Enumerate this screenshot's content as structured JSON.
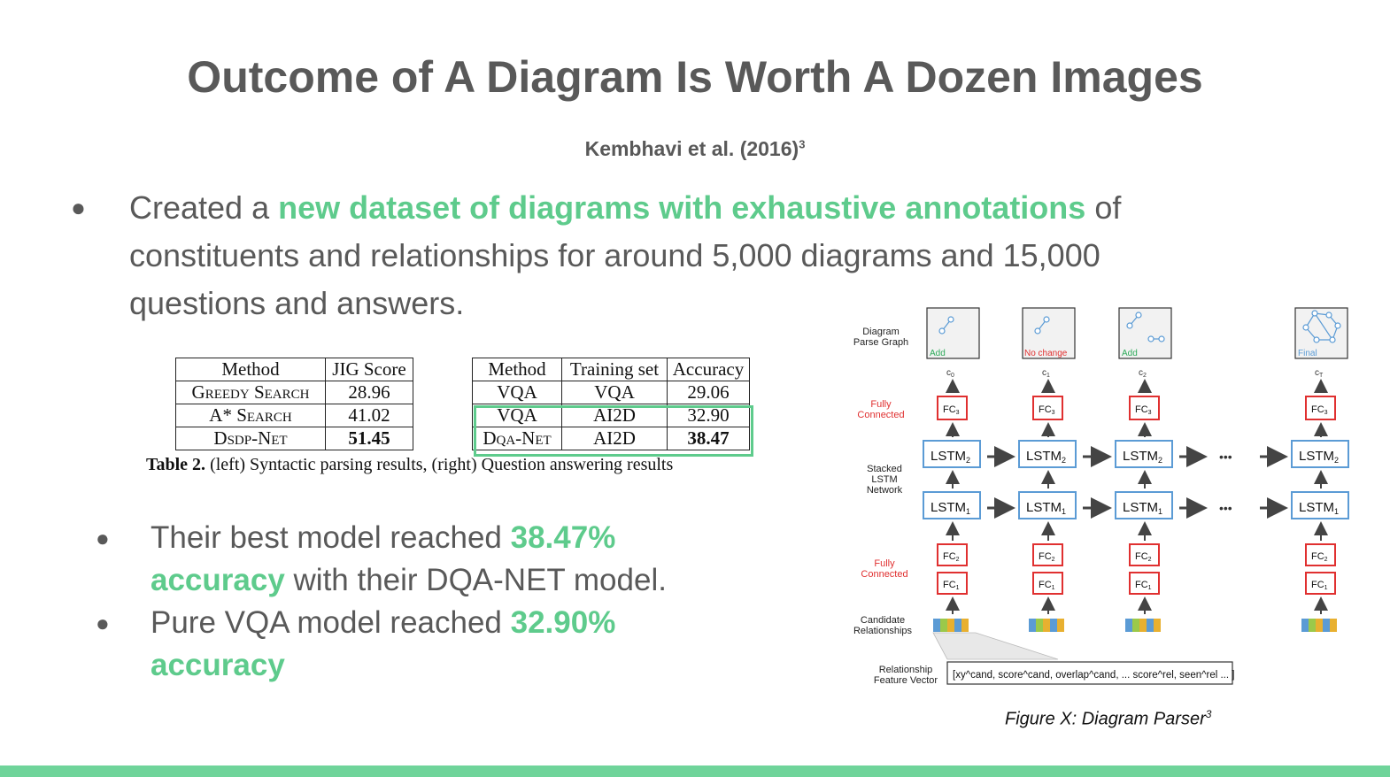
{
  "title": "Outcome of A Diagram Is Worth A Dozen Images",
  "subtitle": {
    "text": "Kembhavi et al. (2016)",
    "sup": "3"
  },
  "main_bullet": {
    "pre": "Created a ",
    "highlight": "new dataset of diagrams with exhaustive annotations",
    "post": " of constituents and relationships for around 5,000 diagrams and 15,000 questions and answers."
  },
  "table_left": {
    "headers": [
      "Method",
      "JIG Score"
    ],
    "rows": [
      [
        "Greedy Search",
        "28.96"
      ],
      [
        "A* Search",
        "41.02"
      ],
      [
        "Dsdp-Net",
        "51.45"
      ]
    ]
  },
  "table_right": {
    "headers": [
      "Method",
      "Training set",
      "Accuracy"
    ],
    "rows": [
      [
        "VQA",
        "VQA",
        "29.06"
      ],
      [
        "VQA",
        "AI2D",
        "32.90"
      ],
      [
        "Dqa-Net",
        "AI2D",
        "38.47"
      ]
    ]
  },
  "table_caption": {
    "label": "Table 2.",
    "text": " (left) Syntactic parsing results, (right) Question answering results"
  },
  "sub_bullets": [
    {
      "pre": "Their best model reached ",
      "highlight": "38.47% accuracy",
      "post": " with their DQA-NET model."
    },
    {
      "pre": "Pure VQA model reached ",
      "highlight": "32.90% accuracy",
      "post": ""
    }
  ],
  "diagram": {
    "row_labels": {
      "parse_graph": [
        "Diagram",
        "Parse Graph"
      ],
      "fc_top": [
        "Fully",
        "Connected"
      ],
      "stacked": [
        "Stacked",
        "LSTM",
        "Network"
      ],
      "fc_bottom": [
        "Fully",
        "Connected"
      ],
      "candidates": [
        "Candidate",
        "Relationships"
      ],
      "feature": [
        "Relationship",
        "Feature Vector"
      ]
    },
    "graph_labels": [
      "Add",
      "No change",
      "Add",
      "Final"
    ],
    "c_labels": [
      "c",
      "c",
      "c",
      "c"
    ],
    "c_subs": [
      "0",
      "1",
      "2",
      "T"
    ],
    "fc3": "FC",
    "fc3_sub": "3",
    "fc2": "FC",
    "fc2_sub": "2",
    "fc1": "FC",
    "fc1_sub": "1",
    "lstm2": "LSTM",
    "lstm2_sub": "2",
    "lstm1": "LSTM",
    "lstm1_sub": "1",
    "ellipsis": "•••",
    "feature_vector": "[xy^cand, score^cand, overlap^cand, ... score^rel, seen^rel ... ]",
    "colors": {
      "red": "#e03030",
      "blue": "#5b9bd5",
      "green": "#2eaa5a",
      "arrow": "#444444"
    }
  },
  "figure_caption": {
    "text": "Figure X: Diagram Parser",
    "sup": "3"
  }
}
